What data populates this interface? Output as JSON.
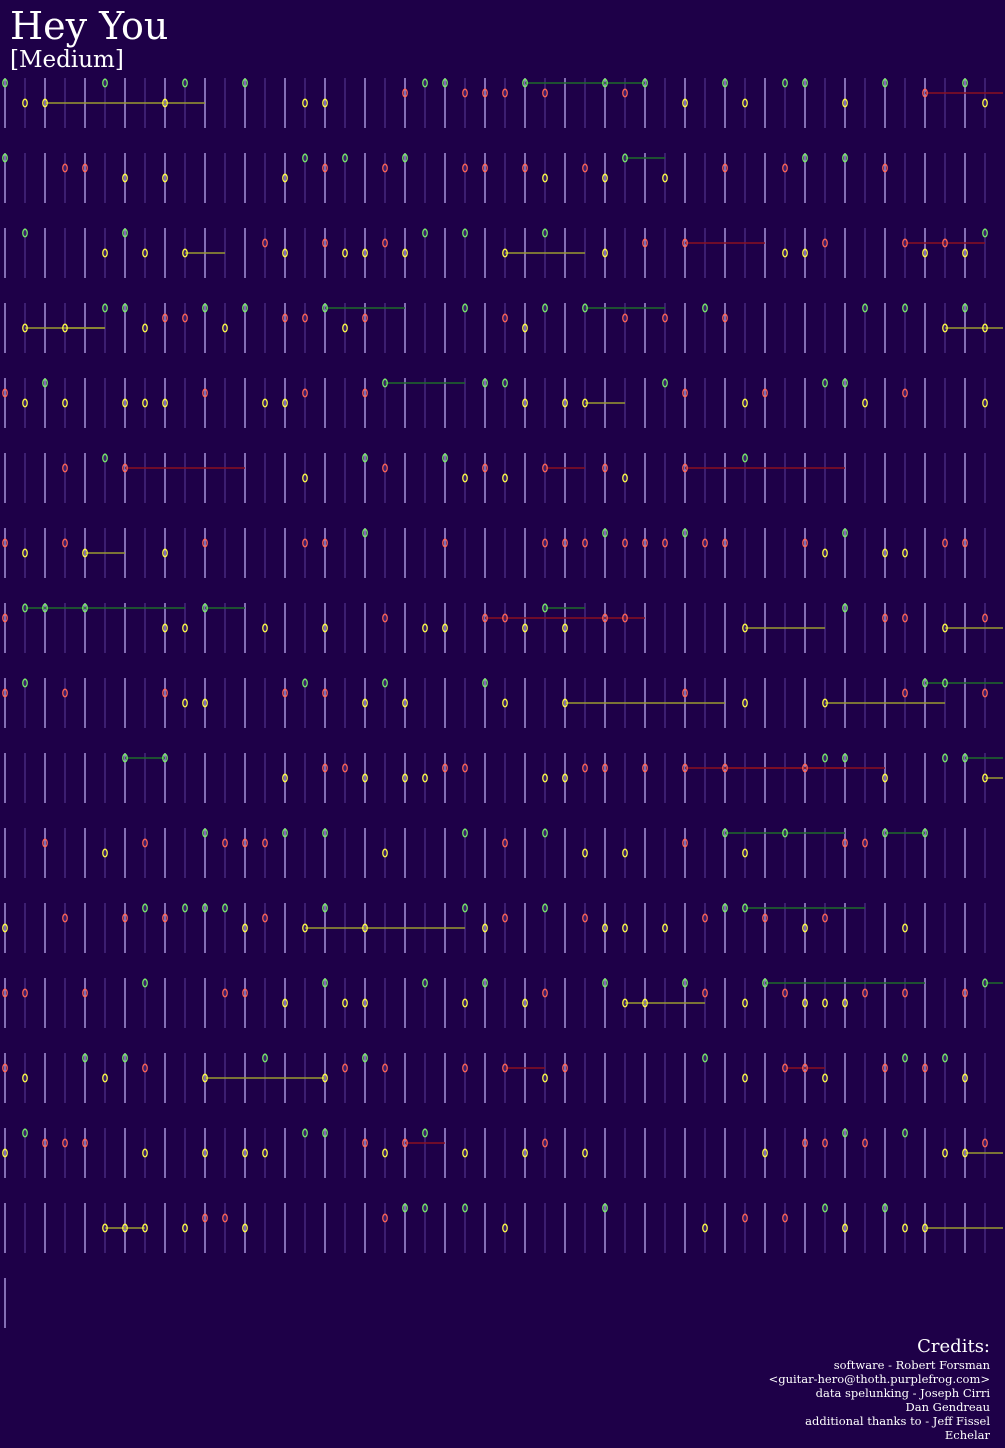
{
  "title": "Hey You",
  "difficulty": "[Medium]",
  "credits": {
    "heading": "Credits:",
    "lines": [
      "software - Robert Forsman",
      "<guitar-hero@thoth.purplefrog.com>",
      "data spelunking - Joseph Cirri",
      "Dan Gendreau",
      "additional thanks to - Jeff Fissel",
      "Echelar"
    ]
  }
}
